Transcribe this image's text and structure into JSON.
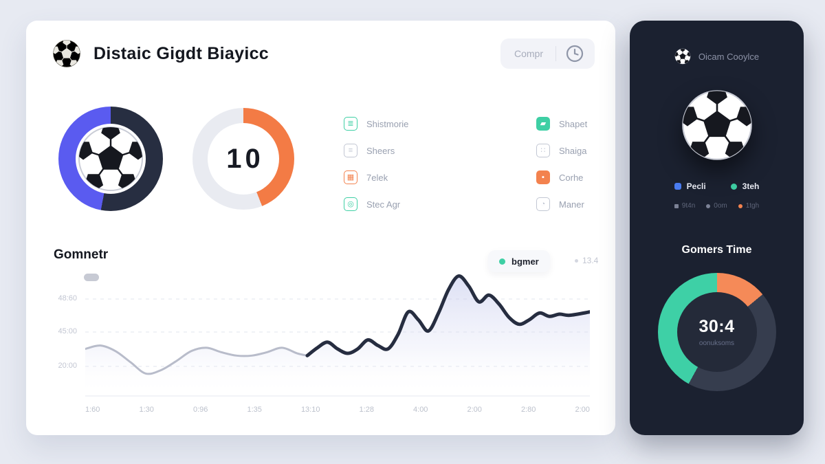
{
  "header": {
    "title": "Distaic Gigdt Biayicc",
    "button_label": "Compr"
  },
  "stats": {
    "ball_donut": {
      "segments": [
        {
          "color": "#272e41",
          "pct": 53
        },
        {
          "color": "#5a5bf0",
          "pct": 47
        }
      ]
    },
    "score_donut": {
      "value": "10",
      "segments": [
        {
          "color": "#f37b45",
          "pct": 44
        },
        {
          "color": "#e9ebf1",
          "pct": 56
        }
      ]
    }
  },
  "menu_left": {
    "items": [
      {
        "label": "Shistmorie",
        "icon": "document-icon",
        "glyph": "≣",
        "color": "#3ecfa4"
      },
      {
        "label": "Sheers",
        "icon": "list-icon",
        "glyph": "≡",
        "color": "#c2c7d3"
      },
      {
        "label": "7elek",
        "icon": "grid-icon",
        "glyph": "▦",
        "color": "#f3824e"
      },
      {
        "label": "Stec Agr",
        "icon": "target-icon",
        "glyph": "◎",
        "color": "#3ecfa4"
      }
    ]
  },
  "menu_right": {
    "items": [
      {
        "label": "Shapet",
        "icon": "square-icon",
        "glyph": "▰",
        "color": "#3ecfa4"
      },
      {
        "label": "Shaiga",
        "icon": "chart-icon",
        "glyph": "∷",
        "color": "#c2c7d3"
      },
      {
        "label": "Corhe",
        "icon": "square-icon",
        "glyph": "▪",
        "color": "#f3824e"
      },
      {
        "label": "Maner",
        "icon": "circle-icon",
        "glyph": "◔",
        "color": "#c2c7d3"
      }
    ]
  },
  "chart": {
    "title": "Gomnetr",
    "legend_label": "bgmer",
    "legend_value": "13.4",
    "legend_dot_color": "#3ecfa4"
  },
  "chart_data": {
    "type": "area",
    "title": "Gomnetr",
    "legend": [
      "bgmer"
    ],
    "legend_position": "top-right",
    "grid": "dashed-horizontal",
    "y_ticks": [
      "48:60",
      "45:00",
      "20:00"
    ],
    "x_ticks": [
      "1:60",
      "1:30",
      "0:96",
      "1:35",
      "13:10",
      "1:28",
      "4:00",
      "2:00",
      "2:80",
      "2:00"
    ],
    "ylim": [
      0,
      110
    ],
    "series": [
      {
        "name": "baseline",
        "color": "#b8bcca",
        "points": [
          [
            0,
            42
          ],
          [
            3,
            45
          ],
          [
            6,
            40
          ],
          [
            9,
            30
          ],
          [
            12,
            20
          ],
          [
            15,
            23
          ],
          [
            18,
            31
          ],
          [
            21,
            40
          ],
          [
            24,
            43
          ],
          [
            27,
            39
          ],
          [
            30,
            36
          ],
          [
            33,
            36
          ],
          [
            36,
            39
          ],
          [
            39,
            43
          ],
          [
            42,
            38
          ],
          [
            44,
            36
          ]
        ]
      },
      {
        "name": "bgmer",
        "color": "#262d40",
        "points": [
          [
            44,
            36
          ],
          [
            46,
            43
          ],
          [
            48,
            48
          ],
          [
            50,
            42
          ],
          [
            52,
            38
          ],
          [
            54,
            42
          ],
          [
            56,
            50
          ],
          [
            58,
            45
          ],
          [
            60,
            42
          ],
          [
            62,
            55
          ],
          [
            64,
            75
          ],
          [
            66,
            68
          ],
          [
            68,
            58
          ],
          [
            70,
            74
          ],
          [
            72,
            95
          ],
          [
            74,
            107
          ],
          [
            76,
            98
          ],
          [
            78,
            84
          ],
          [
            80,
            90
          ],
          [
            82,
            82
          ],
          [
            84,
            70
          ],
          [
            86,
            64
          ],
          [
            88,
            68
          ],
          [
            90,
            74
          ],
          [
            92,
            71
          ],
          [
            94,
            73
          ],
          [
            96,
            72
          ],
          [
            100,
            75
          ]
        ]
      }
    ]
  },
  "sidebar": {
    "title": "Oicam Cooylce",
    "legend": [
      {
        "label": "Pecli",
        "color": "#4a7cf0",
        "shape": "square"
      },
      {
        "label": "3teh",
        "color": "#3ecfa4",
        "shape": "circle"
      }
    ],
    "sublegend": [
      {
        "label": "9t4n",
        "color": "#7c8296"
      },
      {
        "label": "0om",
        "color": "#7c8296"
      },
      {
        "label": "1tgh",
        "color": "#f3824e"
      }
    ],
    "donut_title": "Gomers Time",
    "donut": {
      "value": "30:4",
      "caption": "oonuksoms",
      "segments": [
        {
          "color": "#f58a58",
          "pct": 14
        },
        {
          "color": "#363d4e",
          "pct": 44
        },
        {
          "color": "#3ed0a6",
          "pct": 42
        }
      ]
    }
  }
}
